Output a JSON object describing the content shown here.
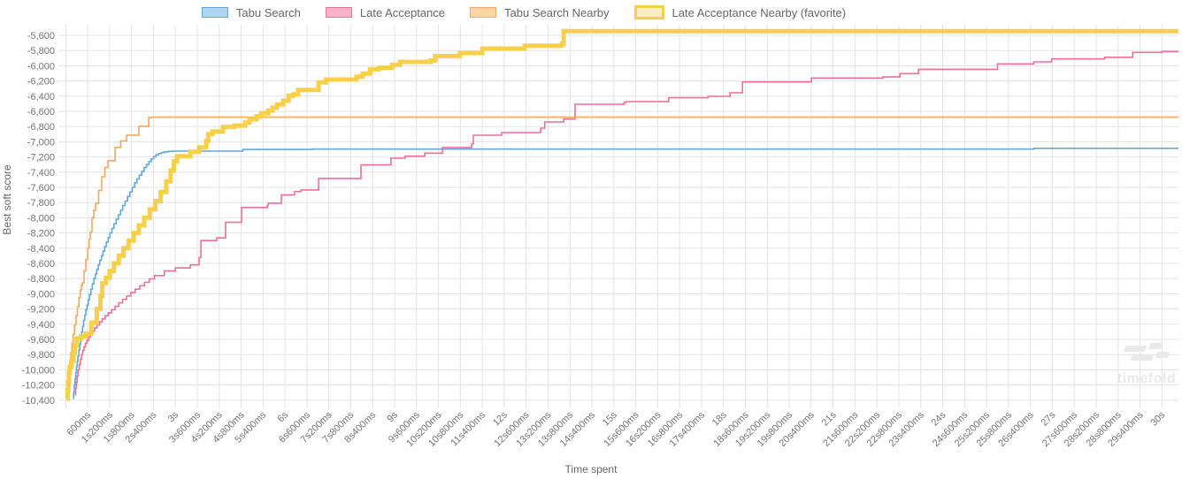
{
  "watermark": {
    "brand": "timefold"
  },
  "legend": {
    "items": [
      {
        "label": "Tabu Search",
        "fill": "#aed6f2",
        "border": "#61a8dd",
        "thick": false
      },
      {
        "label": "Late Acceptance",
        "fill": "#f8b3c8",
        "border": "#ee6f97",
        "thick": false
      },
      {
        "label": "Tabu Search Nearby",
        "fill": "#fbd6a4",
        "border": "#f6a860",
        "thick": false
      },
      {
        "label": "Late Acceptance Nearby (favorite)",
        "fill": "#fcecc2",
        "border": "#f7d04a",
        "thick": true
      }
    ]
  },
  "chart_data": {
    "type": "line",
    "title": "",
    "xlabel": "Time spent",
    "ylabel": "Best soft score",
    "x_unit": "ms",
    "xlim_ms": [
      0,
      30450
    ],
    "ylim": [
      -10400,
      -5600
    ],
    "grid": true,
    "legend_position": "top",
    "x_tick_interval_ms": 600,
    "x_ticks": [
      "600ms",
      "1s200ms",
      "1s800ms",
      "2s400ms",
      "3s",
      "3s600ms",
      "4s200ms",
      "4s800ms",
      "5s400ms",
      "6s",
      "6s600ms",
      "7s200ms",
      "7s800ms",
      "8s400ms",
      "9s",
      "9s600ms",
      "10s200ms",
      "10s800ms",
      "11s400ms",
      "12s",
      "12s600ms",
      "13s200ms",
      "13s800ms",
      "14s400ms",
      "15s",
      "15s600ms",
      "16s200ms",
      "16s800ms",
      "17s400ms",
      "18s",
      "18s600ms",
      "19s200ms",
      "19s800ms",
      "20s400ms",
      "21s",
      "21s600ms",
      "22s200ms",
      "22s800ms",
      "23s400ms",
      "24s",
      "24s600ms",
      "25s200ms",
      "25s800ms",
      "26s400ms",
      "27s",
      "27s600ms",
      "28s200ms",
      "28s800ms",
      "29s400ms",
      "30s"
    ],
    "y_ticks": [
      "-5,600",
      "-5,800",
      "-6,000",
      "-6,200",
      "-6,400",
      "-6,600",
      "-6,800",
      "-7,000",
      "-7,200",
      "-7,400",
      "-7,600",
      "-7,800",
      "-8,000",
      "-8,200",
      "-8,400",
      "-8,600",
      "-8,800",
      "-9,000",
      "-9,200",
      "-9,400",
      "-9,600",
      "-9,800",
      "-10,000",
      "-10,200",
      "-10,400"
    ],
    "series": [
      {
        "name": "Tabu Search",
        "color": "#61a8dd",
        "width": 1.6,
        "final_score": -7086,
        "points": [
          [
            200,
            -10380
          ],
          [
            215,
            -10300
          ],
          [
            235,
            -10200
          ],
          [
            255,
            -10120
          ],
          [
            275,
            -10040
          ],
          [
            295,
            -9960
          ],
          [
            315,
            -9890
          ],
          [
            335,
            -9820
          ],
          [
            360,
            -9740
          ],
          [
            385,
            -9660
          ],
          [
            410,
            -9580
          ],
          [
            435,
            -9500
          ],
          [
            460,
            -9430
          ],
          [
            490,
            -9350
          ],
          [
            520,
            -9280
          ],
          [
            550,
            -9210
          ],
          [
            580,
            -9150
          ],
          [
            615,
            -9080
          ],
          [
            650,
            -9010
          ],
          [
            690,
            -8940
          ],
          [
            730,
            -8870
          ],
          [
            770,
            -8800
          ],
          [
            810,
            -8740
          ],
          [
            850,
            -8680
          ],
          [
            890,
            -8620
          ],
          [
            930,
            -8560
          ],
          [
            975,
            -8500
          ],
          [
            1020,
            -8440
          ],
          [
            1065,
            -8380
          ],
          [
            1110,
            -8320
          ],
          [
            1160,
            -8260
          ],
          [
            1210,
            -8200
          ],
          [
            1265,
            -8140
          ],
          [
            1320,
            -8080
          ],
          [
            1380,
            -8020
          ],
          [
            1440,
            -7960
          ],
          [
            1500,
            -7900
          ],
          [
            1560,
            -7840
          ],
          [
            1625,
            -7780
          ],
          [
            1690,
            -7720
          ],
          [
            1755,
            -7660
          ],
          [
            1820,
            -7600
          ],
          [
            1885,
            -7540
          ],
          [
            1950,
            -7490
          ],
          [
            2015,
            -7440
          ],
          [
            2080,
            -7390
          ],
          [
            2145,
            -7340
          ],
          [
            2210,
            -7300
          ],
          [
            2275,
            -7260
          ],
          [
            2340,
            -7225
          ],
          [
            2405,
            -7195
          ],
          [
            2470,
            -7172
          ],
          [
            2540,
            -7155
          ],
          [
            2615,
            -7142
          ],
          [
            2700,
            -7133
          ],
          [
            2800,
            -7127
          ],
          [
            2950,
            -7123
          ],
          [
            4850,
            -7101
          ],
          [
            6750,
            -7097
          ],
          [
            26500,
            -7086
          ],
          [
            30450,
            -7086
          ]
        ]
      },
      {
        "name": "Late Acceptance",
        "color": "#ee6f97",
        "width": 1.6,
        "final_score": -5810,
        "points": [
          [
            250,
            -10330
          ],
          [
            270,
            -10240
          ],
          [
            290,
            -10160
          ],
          [
            315,
            -10080
          ],
          [
            340,
            -10000
          ],
          [
            370,
            -9930
          ],
          [
            400,
            -9860
          ],
          [
            430,
            -9800
          ],
          [
            465,
            -9745
          ],
          [
            500,
            -9695
          ],
          [
            540,
            -9650
          ],
          [
            580,
            -9610
          ],
          [
            625,
            -9570
          ],
          [
            675,
            -9530
          ],
          [
            730,
            -9490
          ],
          [
            790,
            -9450
          ],
          [
            855,
            -9410
          ],
          [
            925,
            -9370
          ],
          [
            1000,
            -9330
          ],
          [
            1080,
            -9290
          ],
          [
            1165,
            -9250
          ],
          [
            1255,
            -9210
          ],
          [
            1350,
            -9165
          ],
          [
            1450,
            -9120
          ],
          [
            1555,
            -9075
          ],
          [
            1665,
            -9030
          ],
          [
            1780,
            -8985
          ],
          [
            1900,
            -8940
          ],
          [
            2025,
            -8895
          ],
          [
            2155,
            -8850
          ],
          [
            2290,
            -8805
          ],
          [
            2430,
            -8760
          ],
          [
            2700,
            -8700
          ],
          [
            3000,
            -8660
          ],
          [
            3410,
            -8620
          ],
          [
            3650,
            -8525
          ],
          [
            3700,
            -8300
          ],
          [
            4130,
            -8265
          ],
          [
            4375,
            -8060
          ],
          [
            4810,
            -7865
          ],
          [
            5515,
            -7838
          ],
          [
            5545,
            -7808
          ],
          [
            5900,
            -7700
          ],
          [
            6265,
            -7655
          ],
          [
            6440,
            -7634
          ],
          [
            6920,
            -7483
          ],
          [
            8080,
            -7305
          ],
          [
            8900,
            -7216
          ],
          [
            9290,
            -7189
          ],
          [
            9825,
            -7150
          ],
          [
            10310,
            -7076
          ],
          [
            11110,
            -7030
          ],
          [
            11155,
            -6914
          ],
          [
            11930,
            -6879
          ],
          [
            13000,
            -6821
          ],
          [
            13110,
            -6740
          ],
          [
            13630,
            -6701
          ],
          [
            13940,
            -6507
          ],
          [
            15280,
            -6484
          ],
          [
            15330,
            -6472
          ],
          [
            16500,
            -6420
          ],
          [
            17580,
            -6402
          ],
          [
            18180,
            -6356
          ],
          [
            18520,
            -6213
          ],
          [
            20410,
            -6162
          ],
          [
            22360,
            -6148
          ],
          [
            22830,
            -6104
          ],
          [
            23340,
            -6046
          ],
          [
            25500,
            -5976
          ],
          [
            26490,
            -5949
          ],
          [
            26980,
            -5910
          ],
          [
            28430,
            -5888
          ],
          [
            29200,
            -5825
          ],
          [
            30000,
            -5813
          ],
          [
            30450,
            -5810
          ]
        ]
      },
      {
        "name": "Tabu Search Nearby",
        "color": "#f6a860",
        "width": 1.6,
        "final_score": -6675,
        "points": [
          [
            30,
            -10380
          ],
          [
            50,
            -10250
          ],
          [
            70,
            -10130
          ],
          [
            90,
            -10010
          ],
          [
            110,
            -9890
          ],
          [
            140,
            -9770
          ],
          [
            170,
            -9650
          ],
          [
            205,
            -9530
          ],
          [
            240,
            -9410
          ],
          [
            280,
            -9290
          ],
          [
            320,
            -9170
          ],
          [
            360,
            -9050
          ],
          [
            400,
            -8950
          ],
          [
            430,
            -8890
          ],
          [
            455,
            -8855
          ],
          [
            500,
            -8700
          ],
          [
            550,
            -8550
          ],
          [
            600,
            -8400
          ],
          [
            640,
            -8280
          ],
          [
            670,
            -8190
          ],
          [
            720,
            -8000
          ],
          [
            770,
            -7900
          ],
          [
            815,
            -7810
          ],
          [
            900,
            -7640
          ],
          [
            985,
            -7460
          ],
          [
            1070,
            -7340
          ],
          [
            1155,
            -7250
          ],
          [
            1350,
            -7075
          ],
          [
            1500,
            -6990
          ],
          [
            1665,
            -6913
          ],
          [
            2000,
            -6797
          ],
          [
            2270,
            -6682
          ],
          [
            2350,
            -6676
          ],
          [
            30450,
            -6675
          ]
        ]
      },
      {
        "name": "Late Acceptance Nearby (favorite)",
        "color": "#f7d04a",
        "width": 5,
        "final_score": -5545,
        "points": [
          [
            30,
            -10380
          ],
          [
            50,
            -10270
          ],
          [
            70,
            -10160
          ],
          [
            90,
            -10040
          ],
          [
            110,
            -9960
          ],
          [
            160,
            -9880
          ],
          [
            210,
            -9780
          ],
          [
            250,
            -9680
          ],
          [
            300,
            -9590
          ],
          [
            420,
            -9560
          ],
          [
            550,
            -9525
          ],
          [
            700,
            -9380
          ],
          [
            850,
            -9200
          ],
          [
            950,
            -9030
          ],
          [
            1000,
            -8860
          ],
          [
            1100,
            -8790
          ],
          [
            1200,
            -8700
          ],
          [
            1320,
            -8600
          ],
          [
            1450,
            -8500
          ],
          [
            1580,
            -8400
          ],
          [
            1720,
            -8300
          ],
          [
            1860,
            -8200
          ],
          [
            2000,
            -8100
          ],
          [
            2150,
            -8000
          ],
          [
            2300,
            -7890
          ],
          [
            2450,
            -7780
          ],
          [
            2600,
            -7660
          ],
          [
            2750,
            -7520
          ],
          [
            2870,
            -7380
          ],
          [
            2960,
            -7260
          ],
          [
            3045,
            -7190
          ],
          [
            3410,
            -7131
          ],
          [
            3650,
            -7073
          ],
          [
            3845,
            -6990
          ],
          [
            3900,
            -6900
          ],
          [
            4015,
            -6865
          ],
          [
            4300,
            -6805
          ],
          [
            4620,
            -6787
          ],
          [
            4910,
            -6747
          ],
          [
            5030,
            -6705
          ],
          [
            5220,
            -6667
          ],
          [
            5350,
            -6627
          ],
          [
            5540,
            -6589
          ],
          [
            5660,
            -6550
          ],
          [
            5780,
            -6511
          ],
          [
            5950,
            -6460
          ],
          [
            6100,
            -6395
          ],
          [
            6230,
            -6376
          ],
          [
            6360,
            -6318
          ],
          [
            6920,
            -6220
          ],
          [
            7120,
            -6181
          ],
          [
            7960,
            -6143
          ],
          [
            8130,
            -6104
          ],
          [
            8330,
            -6046
          ],
          [
            8570,
            -6027
          ],
          [
            8930,
            -5988
          ],
          [
            9150,
            -5949
          ],
          [
            9990,
            -5930
          ],
          [
            10110,
            -5872
          ],
          [
            10790,
            -5833
          ],
          [
            11400,
            -5774
          ],
          [
            12560,
            -5736
          ],
          [
            13580,
            -5708
          ],
          [
            13630,
            -5545
          ],
          [
            30450,
            -5545
          ]
        ]
      }
    ]
  }
}
